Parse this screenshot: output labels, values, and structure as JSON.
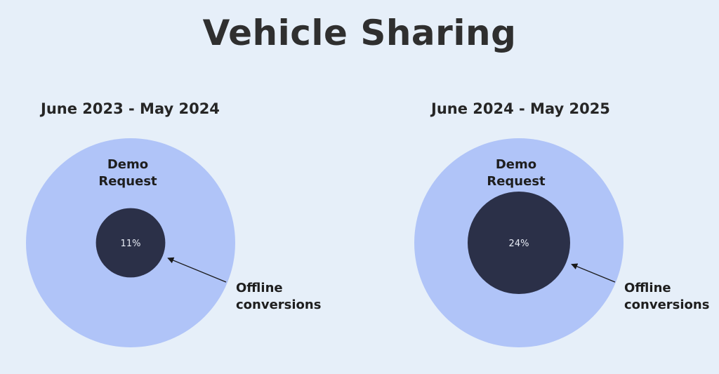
{
  "title": "Vehicle Sharing",
  "colors": {
    "background": "#e6eff9",
    "outer": "#b0c4f8",
    "inner": "#2b3048",
    "arrow": "#1a1a1a"
  },
  "chart_data": [
    {
      "type": "nested-circle",
      "title": "June 2023 - May 2024",
      "outer": {
        "label": [
          "Demo",
          "Request"
        ],
        "value": 100
      },
      "inner": {
        "value": 11,
        "value_label": "11%"
      },
      "annotation": [
        "Offline",
        "conversions"
      ]
    },
    {
      "type": "nested-circle",
      "title": "June 2024 - May 2025",
      "outer": {
        "label": [
          "Demo",
          "Request"
        ],
        "value": 100
      },
      "inner": {
        "value": 24,
        "value_label": "24%"
      },
      "annotation": [
        "Offline",
        "conversions"
      ]
    }
  ]
}
